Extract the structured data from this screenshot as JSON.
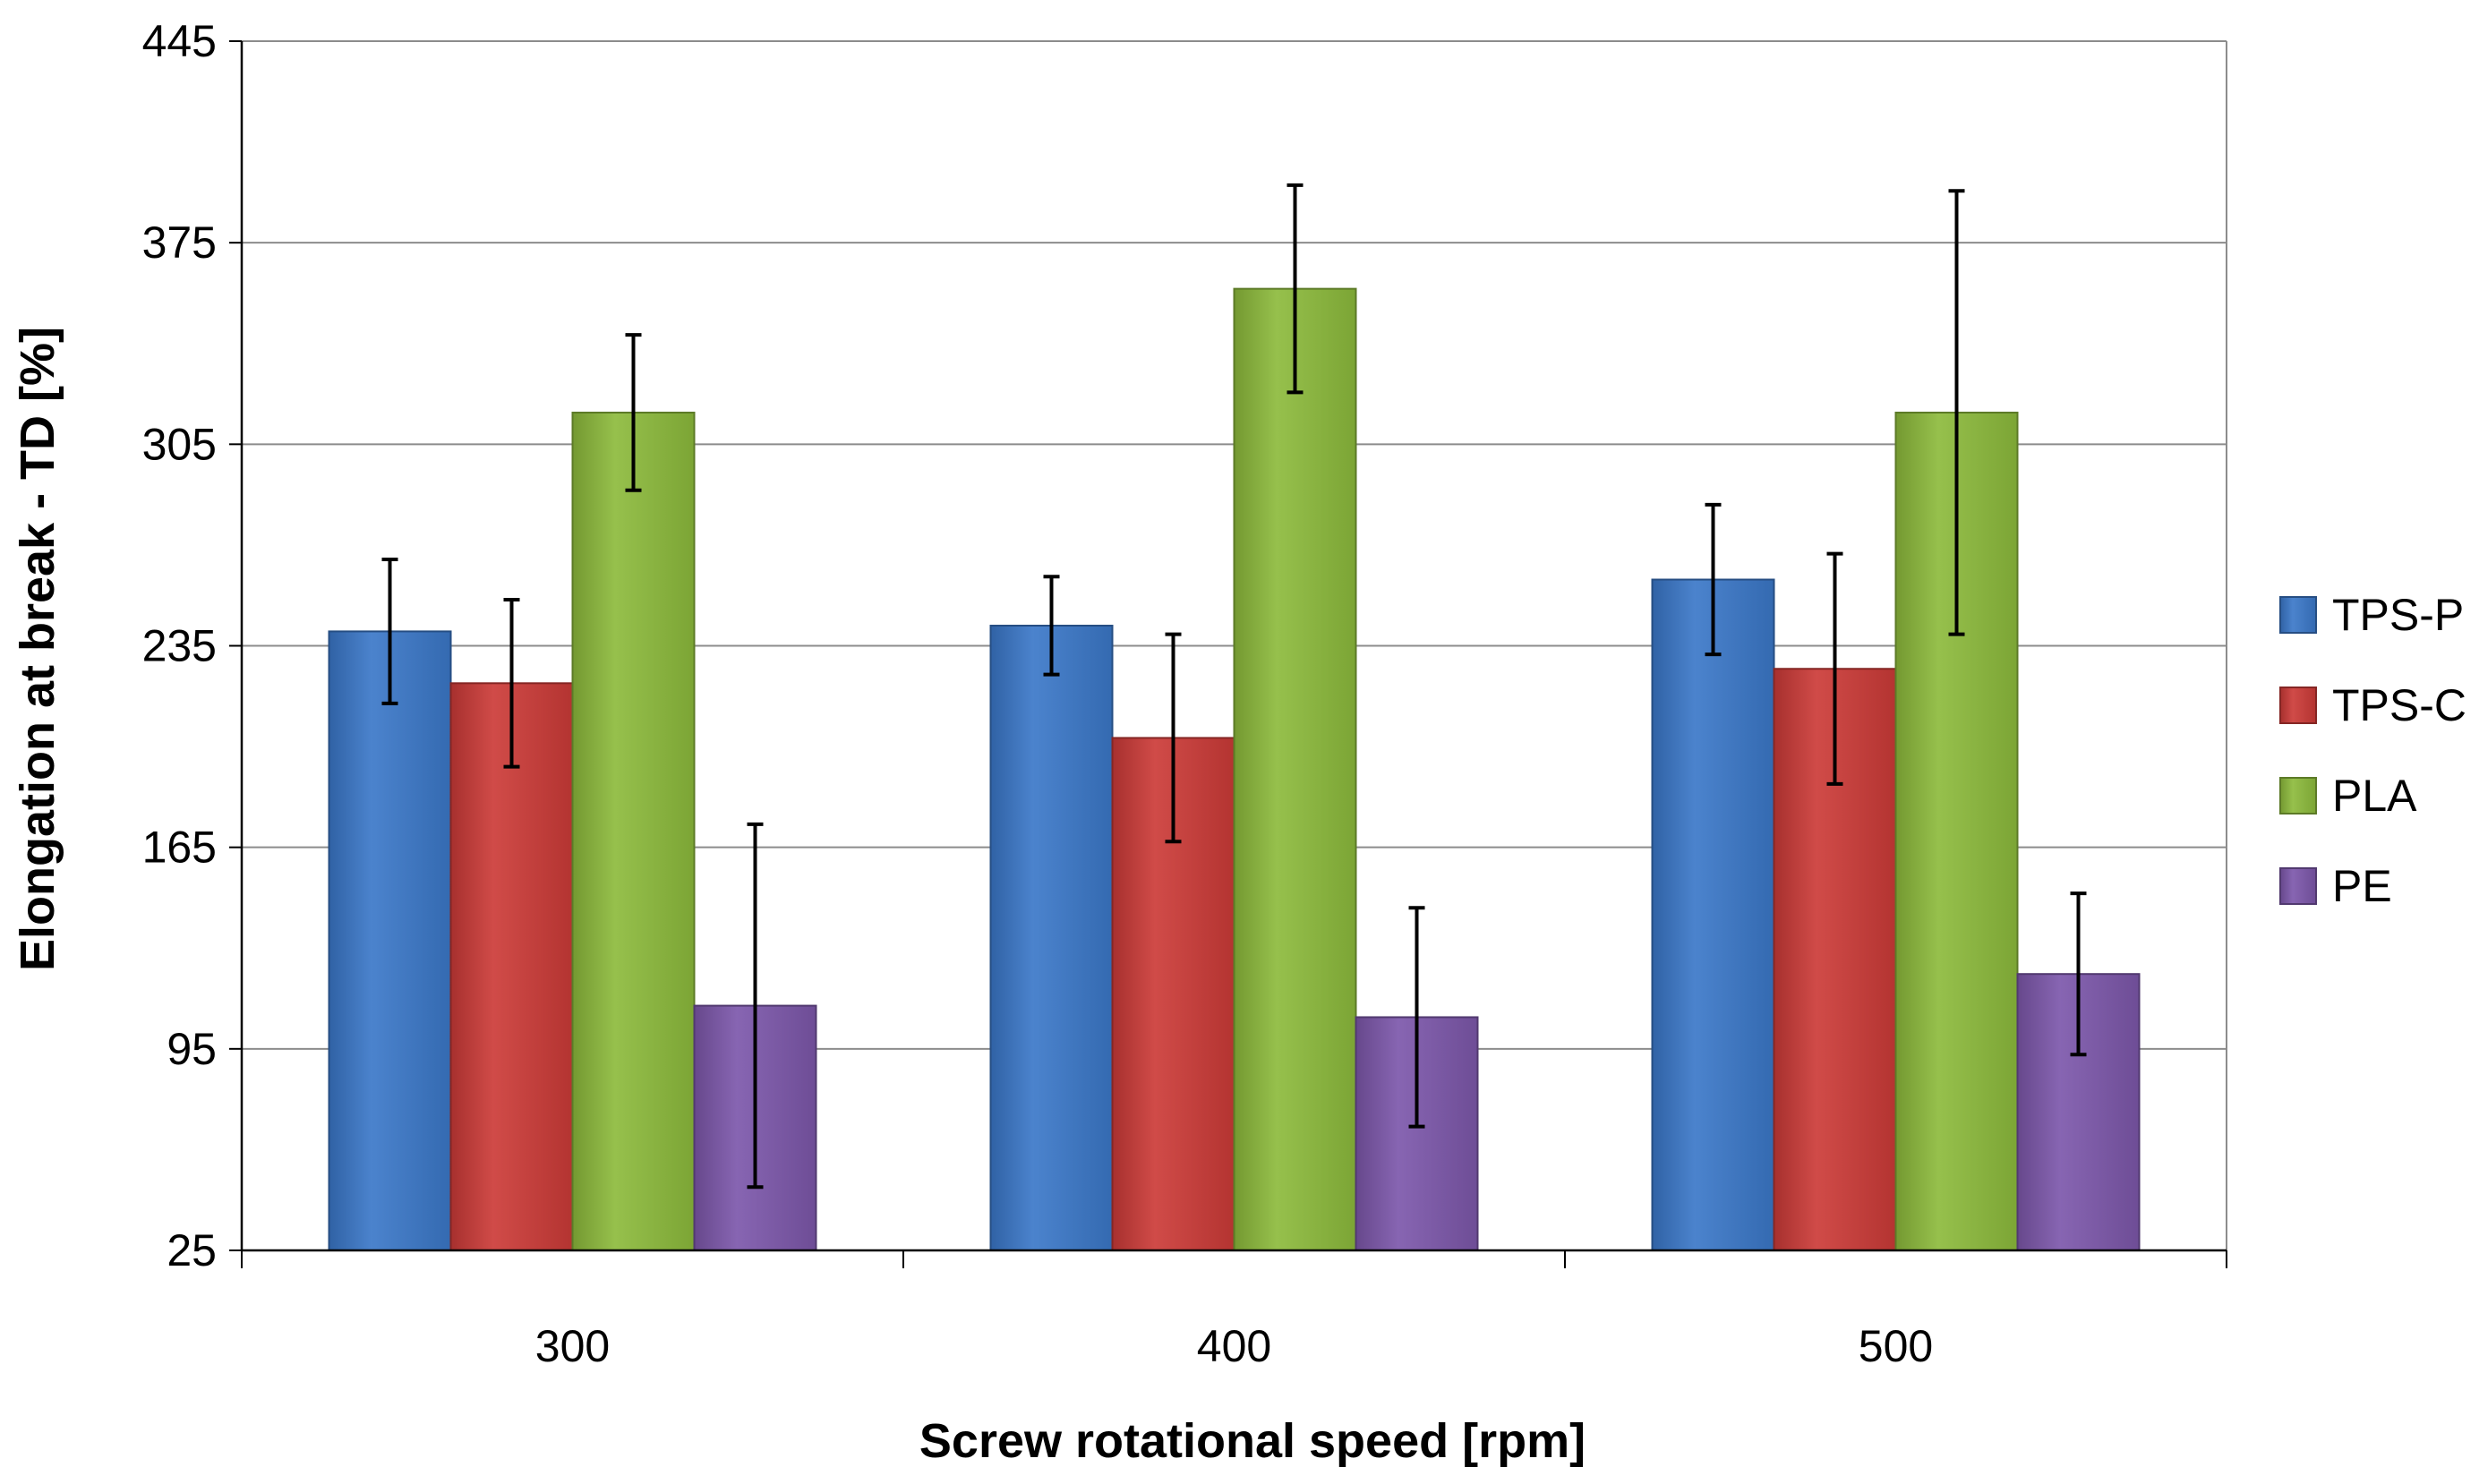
{
  "chart_data": {
    "type": "bar",
    "categories": [
      "300",
      "400",
      "500"
    ],
    "series": [
      {
        "name": "TPS-P",
        "color": "#3b78c9",
        "values": [
          240,
          242,
          258
        ],
        "errors": [
          25,
          17,
          26
        ]
      },
      {
        "name": "TPS-C",
        "color": "#cc3b38",
        "values": [
          222,
          203,
          227
        ],
        "errors": [
          29,
          36,
          40
        ]
      },
      {
        "name": "PLA",
        "color": "#8dbb3c",
        "values": [
          316,
          359,
          316
        ],
        "errors": [
          27,
          36,
          77
        ]
      },
      {
        "name": "PE",
        "color": "#7d58ab",
        "values": [
          110,
          106,
          121
        ],
        "errors": [
          63,
          38,
          28
        ]
      }
    ],
    "title": "",
    "xlabel": "Screw rotational speed [rpm]",
    "ylabel": "Elongation at break  - TD [%]",
    "ylim": [
      25,
      445
    ],
    "yticks": [
      25,
      95,
      165,
      235,
      305,
      375,
      445
    ],
    "grid": true,
    "legend_position": "right"
  }
}
